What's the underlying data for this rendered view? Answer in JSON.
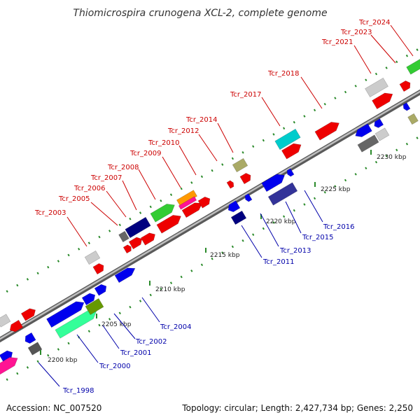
{
  "title": "Thiomicrospira crunogena XCL-2, complete genome",
  "footer": {
    "accession": "Accession: NC_007520",
    "summary": "Topology: circular; Length: 2,427,734 bp; Genes: 2,250"
  },
  "colors": {
    "upper_label": "#cc0000",
    "lower_label": "#0000aa",
    "backbone": "#9a9a9a",
    "tick_mark": "#2a8a2a"
  },
  "ticks": [
    "2200 kbp",
    "2205 kbp",
    "2210 kbp",
    "2215 kbp",
    "2220 kbp",
    "2225 kbp",
    "2230 kbp"
  ],
  "upper_labels": [
    "Tcr_2003",
    "Tcr_2005",
    "Tcr_2006",
    "Tcr_2007",
    "Tcr_2008",
    "Tcr_2009",
    "Tcr_2010",
    "Tcr_2012",
    "Tcr_2014",
    "Tcr_2017",
    "Tcr_2018",
    "Tcr_2021",
    "Tcr_2023",
    "Tcr_2024"
  ],
  "lower_labels": [
    "Tcr_1998",
    "Tcr_2000",
    "Tcr_2001",
    "Tcr_2002",
    "Tcr_2004",
    "Tcr_2011",
    "Tcr_2013",
    "Tcr_2015",
    "Tcr_2016"
  ]
}
